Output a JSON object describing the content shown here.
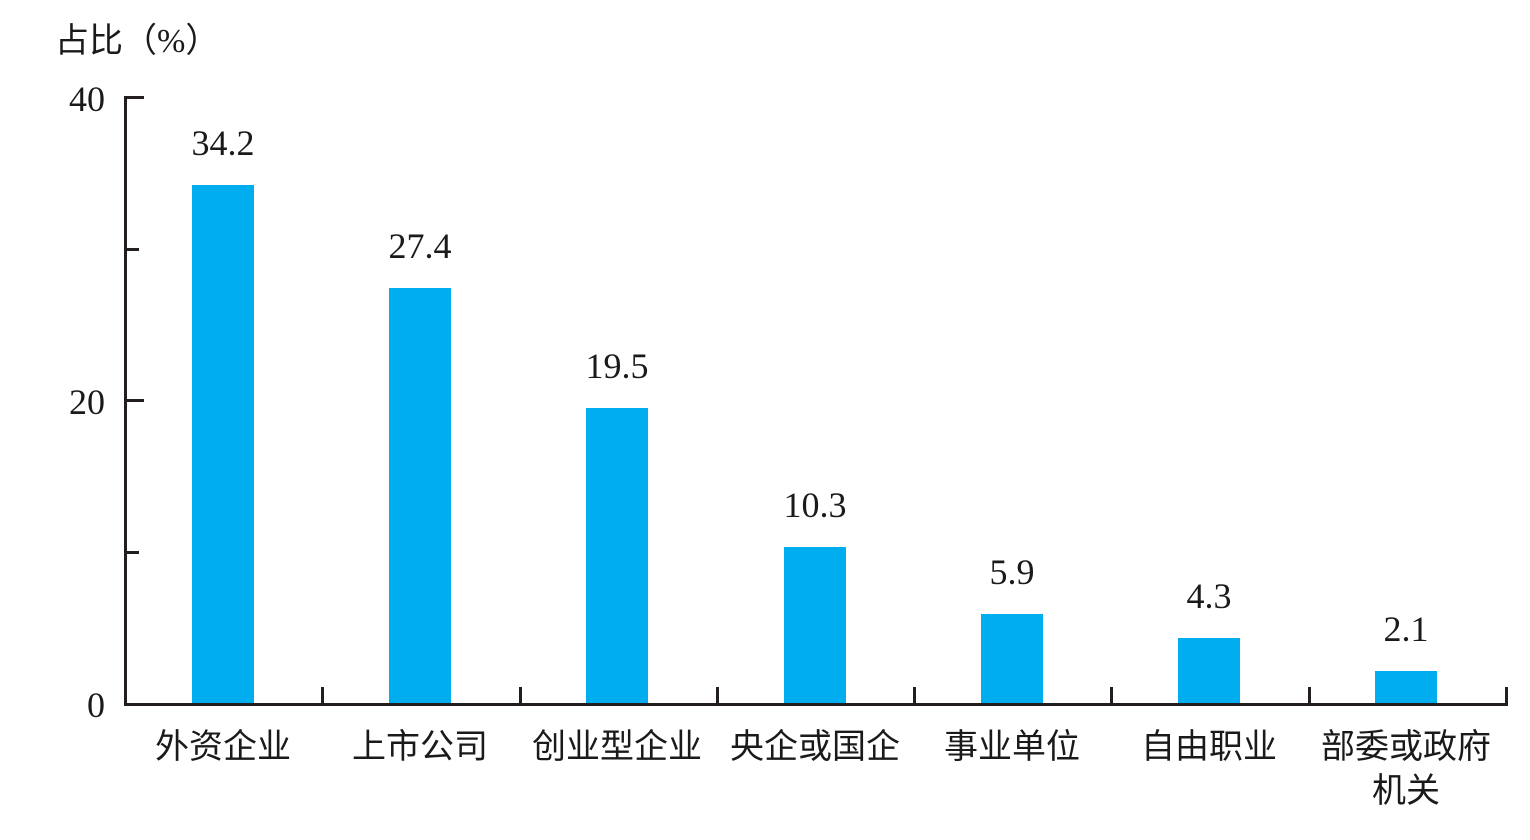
{
  "chart_data": {
    "type": "bar",
    "title": "",
    "ylabel": "占比（%）",
    "xlabel": "",
    "categories": [
      "外资企业",
      "上市公司",
      "创业型企业",
      "央企或国企",
      "事业单位",
      "自由职业",
      "部委或政府机关"
    ],
    "values": [
      34.2,
      27.4,
      19.5,
      10.3,
      5.9,
      4.3,
      2.1
    ],
    "value_labels": [
      "34.2",
      "27.4",
      "19.5",
      "10.3",
      "5.9",
      "4.3",
      "2.1"
    ],
    "ylim": [
      0,
      40
    ],
    "yticks": [
      {
        "value": 0,
        "label": "0"
      },
      {
        "value": 10,
        "label": ""
      },
      {
        "value": 20,
        "label": "20"
      },
      {
        "value": 30,
        "label": ""
      },
      {
        "value": 40,
        "label": "40"
      }
    ],
    "bar_color": "#00ADEE",
    "axis_color": "#231F20",
    "text_color": "#1A1A1A",
    "grid": false,
    "legend": "none",
    "value_labels_shown": true,
    "ticks_direction": "inside",
    "x_ticks_between_categories": true
  }
}
